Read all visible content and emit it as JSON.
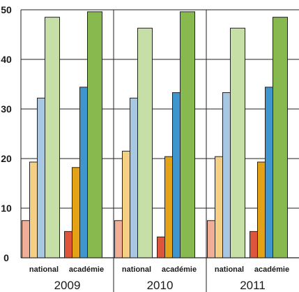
{
  "chart_data": {
    "type": "bar",
    "title": "",
    "xlabel": "",
    "ylabel": "",
    "ylim": [
      0,
      50
    ],
    "yticks": [
      0,
      10,
      20,
      30,
      40,
      50
    ],
    "grid": "horizontal",
    "legend": "none",
    "groups": [
      "2009",
      "2010",
      "2011"
    ],
    "subgroups": [
      "national",
      "académie"
    ],
    "series_colors": [
      [
        "#efae95",
        "#f4d084",
        "#a7c7e3",
        "#c6dfa6"
      ],
      [
        "#dd563b",
        "#e4a316",
        "#3f96cf",
        "#88b94e"
      ]
    ],
    "values": [
      {
        "group": "2009",
        "national": [
          7.5,
          19.3,
          32.2,
          48.5
        ],
        "académie": [
          5.3,
          18.2,
          34.4,
          49.6
        ]
      },
      {
        "group": "2010",
        "national": [
          7.5,
          21.5,
          32.2,
          46.3
        ],
        "académie": [
          4.2,
          20.4,
          33.3,
          49.6
        ]
      },
      {
        "group": "2011",
        "national": [
          7.5,
          20.4,
          33.3,
          46.3
        ],
        "académie": [
          5.3,
          19.3,
          34.4,
          48.5
        ]
      }
    ]
  }
}
